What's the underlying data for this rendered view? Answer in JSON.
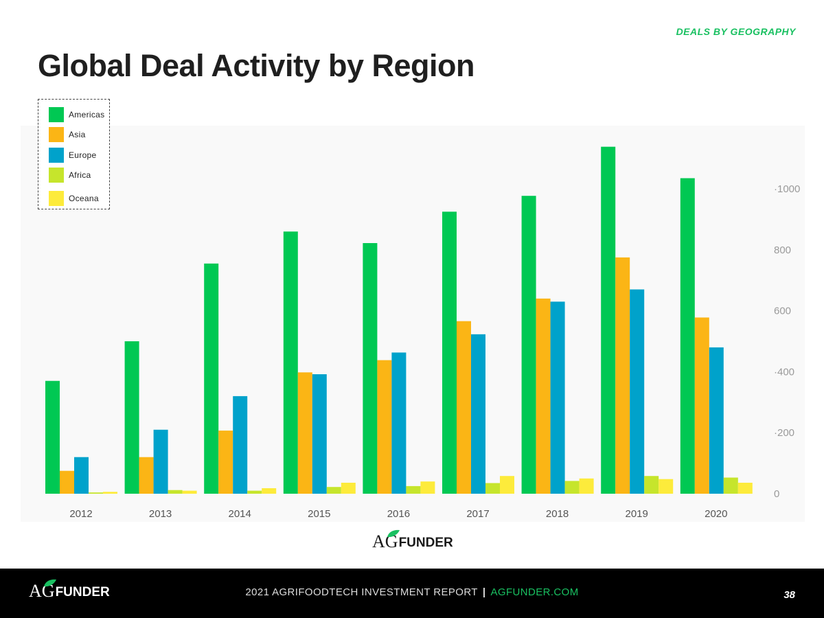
{
  "header": {
    "section_tag": "DEALS BY GEOGRAPHY",
    "title": "Global Deal Activity by Region"
  },
  "chart_data": {
    "type": "bar",
    "categories": [
      "2012",
      "2013",
      "2014",
      "2015",
      "2016",
      "2017",
      "2018",
      "2019",
      "2020"
    ],
    "series": [
      {
        "name": "Americas",
        "color": "#00c853",
        "values": [
          370,
          500,
          755,
          860,
          822,
          925,
          977,
          1138,
          1035
        ]
      },
      {
        "name": "Asia",
        "color": "#fbb515",
        "values": [
          75,
          120,
          207,
          398,
          438,
          566,
          640,
          775,
          578
        ]
      },
      {
        "name": "Europe",
        "color": "#00a2cb",
        "values": [
          120,
          210,
          320,
          392,
          463,
          523,
          630,
          670,
          480
        ]
      },
      {
        "name": "Africa",
        "color": "#c6e52c",
        "values": [
          4,
          12,
          10,
          22,
          25,
          35,
          42,
          58,
          53
        ]
      },
      {
        "name": "Oceana",
        "color": "#fdeb3b",
        "values": [
          6,
          10,
          18,
          36,
          40,
          58,
          50,
          48,
          36
        ]
      }
    ],
    "y_ticks": [
      0,
      200,
      400,
      600,
      800,
      1000
    ],
    "y_tick_labels": [
      "0",
      "·200",
      "·400",
      "600",
      "800",
      "·1000"
    ],
    "ylim": [
      0,
      1150
    ],
    "axis_side": "right",
    "legend_position": "top-left",
    "xlabel": "",
    "ylabel": "",
    "title": "",
    "grid": false
  },
  "legend": [
    {
      "label": "Americas",
      "color": "#00c853"
    },
    {
      "label": "Asia",
      "color": "#fbb515"
    },
    {
      "label": "Europe",
      "color": "#00a2cb"
    },
    {
      "label": "Africa",
      "color": "#c6e52c"
    },
    {
      "label": "Oceana",
      "color": "#fdeb3b"
    }
  ],
  "brand": {
    "logo_ag": "AG",
    "logo_funder": "FUNDER",
    "leaf_color": "#19c061"
  },
  "footer": {
    "report": "2021 AGRIFOODTECH INVESTMENT REPORT",
    "separator": "|",
    "site": "AGFUNDER.COM",
    "page_number": "38"
  }
}
